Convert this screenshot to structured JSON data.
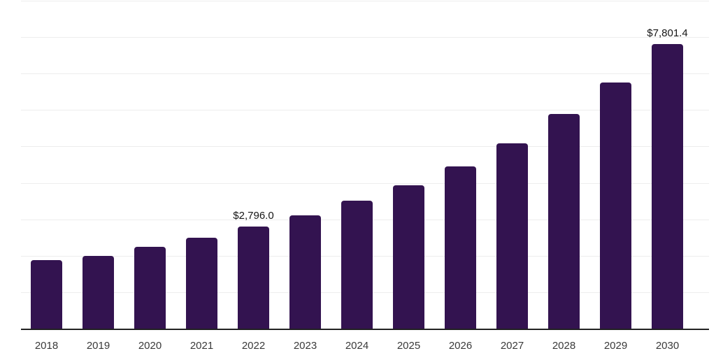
{
  "chart_data": {
    "type": "bar",
    "title": "",
    "xlabel": "",
    "ylabel": "",
    "categories": [
      "2018",
      "2019",
      "2020",
      "2021",
      "2022",
      "2023",
      "2024",
      "2025",
      "2026",
      "2027",
      "2028",
      "2029",
      "2030"
    ],
    "values": [
      1875,
      2000,
      2240,
      2495,
      2796.0,
      3115,
      3520,
      3935,
      4460,
      5085,
      5885,
      6760,
      7801.4
    ],
    "data_labels": {
      "2022": "$2,796.0",
      "2030": "$7,801.4"
    },
    "ylim": [
      0,
      9000
    ],
    "gridline_interval": 1000,
    "grid": true,
    "legend": false,
    "bar_color": "#331350",
    "gridline_color": "#ededed",
    "axis_line_color": "#222222",
    "value_label_color": "#151515",
    "tick_label_color": "#3a3a3a"
  }
}
